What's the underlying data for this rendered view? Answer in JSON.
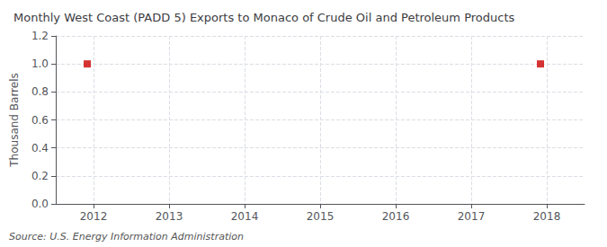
{
  "chart_data": {
    "type": "scatter",
    "title": "Monthly West Coast (PADD 5) Exports to Monaco of Crude Oil and Petroleum Products",
    "ylabel": "Thousand Barrels",
    "source": "Source: U.S. Energy Information Administration",
    "x": [
      2011.917,
      2017.917
    ],
    "values": [
      1.0,
      1.0
    ],
    "color": "#cc0000",
    "marker": "square",
    "xlim": [
      2011.5,
      2018.5
    ],
    "xticks": [
      2012,
      2013,
      2014,
      2015,
      2016,
      2017,
      2018
    ],
    "ylim": [
      0.0,
      1.2
    ],
    "yticks": [
      {
        "value": 0.0,
        "label": "0.0"
      },
      0.2,
      0.4,
      0.6,
      0.8,
      {
        "value": 1.0,
        "label": "1.0"
      },
      1.2
    ],
    "grid": true
  }
}
